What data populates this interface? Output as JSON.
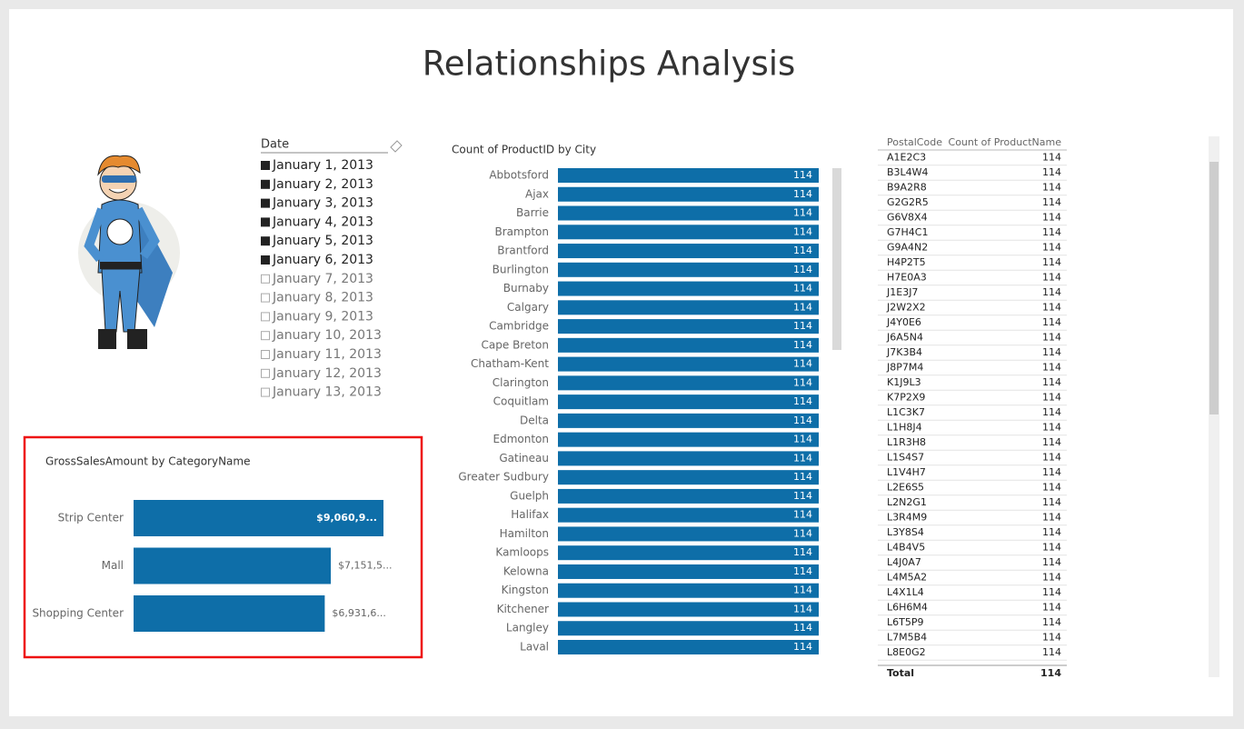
{
  "title": "Relationships Analysis",
  "slicer": {
    "title": "Date",
    "items": [
      {
        "label": "January 1, 2013",
        "selected": true
      },
      {
        "label": "January 2, 2013",
        "selected": true
      },
      {
        "label": "January 3, 2013",
        "selected": true
      },
      {
        "label": "January 4, 2013",
        "selected": true
      },
      {
        "label": "January 5, 2013",
        "selected": true
      },
      {
        "label": "January 6, 2013",
        "selected": true
      },
      {
        "label": "January 7, 2013",
        "selected": false
      },
      {
        "label": "January 8, 2013",
        "selected": false
      },
      {
        "label": "January 9, 2013",
        "selected": false
      },
      {
        "label": "January 10, 2013",
        "selected": false
      },
      {
        "label": "January 11, 2013",
        "selected": false
      },
      {
        "label": "January 12, 2013",
        "selected": false
      },
      {
        "label": "January 13, 2013",
        "selected": false
      }
    ]
  },
  "chart_data": [
    {
      "type": "bar",
      "title": "Count of ProductID by City",
      "color": "#0e6ea8",
      "categories": [
        "Abbotsford",
        "Ajax",
        "Barrie",
        "Brampton",
        "Brantford",
        "Burlington",
        "Burnaby",
        "Calgary",
        "Cambridge",
        "Cape Breton",
        "Chatham-Kent",
        "Clarington",
        "Coquitlam",
        "Delta",
        "Edmonton",
        "Gatineau",
        "Greater Sudbury",
        "Guelph",
        "Halifax",
        "Hamilton",
        "Kamloops",
        "Kelowna",
        "Kingston",
        "Kitchener",
        "Langley",
        "Laval"
      ],
      "values": [
        114,
        114,
        114,
        114,
        114,
        114,
        114,
        114,
        114,
        114,
        114,
        114,
        114,
        114,
        114,
        114,
        114,
        114,
        114,
        114,
        114,
        114,
        114,
        114,
        114,
        114
      ]
    },
    {
      "type": "bar",
      "title": "GrossSalesAmount by CategoryName",
      "color": "#0e6ea8",
      "categories": [
        "Strip Center",
        "Mall",
        "Shopping Center"
      ],
      "values": [
        9060900,
        7151500,
        6931600
      ],
      "value_labels": [
        "$9,060,9...",
        "$7,151,5...",
        "$6,931,6..."
      ]
    }
  ],
  "table": {
    "columns": [
      "PostalCode",
      "Count of ProductName"
    ],
    "rows": [
      [
        "A1E2C3",
        114
      ],
      [
        "B3L4W4",
        114
      ],
      [
        "B9A2R8",
        114
      ],
      [
        "G2G2R5",
        114
      ],
      [
        "G6V8X4",
        114
      ],
      [
        "G7H4C1",
        114
      ],
      [
        "G9A4N2",
        114
      ],
      [
        "H4P2T5",
        114
      ],
      [
        "H7E0A3",
        114
      ],
      [
        "J1E3J7",
        114
      ],
      [
        "J2W2X2",
        114
      ],
      [
        "J4Y0E6",
        114
      ],
      [
        "J6A5N4",
        114
      ],
      [
        "J7K3B4",
        114
      ],
      [
        "J8P7M4",
        114
      ],
      [
        "K1J9L3",
        114
      ],
      [
        "K7P2X9",
        114
      ],
      [
        "L1C3K7",
        114
      ],
      [
        "L1H8J4",
        114
      ],
      [
        "L1R3H8",
        114
      ],
      [
        "L1S4S7",
        114
      ],
      [
        "L1V4H7",
        114
      ],
      [
        "L2E6S5",
        114
      ],
      [
        "L2N2G1",
        114
      ],
      [
        "L3R4M9",
        114
      ],
      [
        "L3Y8S4",
        114
      ],
      [
        "L4B4V5",
        114
      ],
      [
        "L4J0A7",
        114
      ],
      [
        "L4M5A2",
        114
      ],
      [
        "L4X1L4",
        114
      ],
      [
        "L6H6M4",
        114
      ],
      [
        "L6T5P9",
        114
      ],
      [
        "L7M5B4",
        114
      ],
      [
        "L8E0G2",
        114
      ]
    ],
    "total": [
      "Total",
      114
    ]
  }
}
